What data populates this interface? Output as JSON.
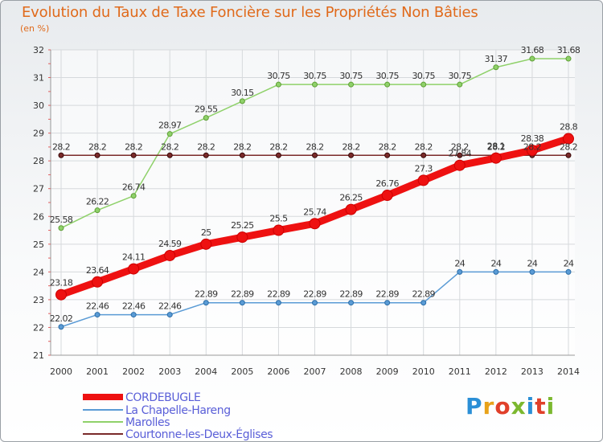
{
  "title": "Evolution du Taux de Taxe Foncière sur les Propriétés Non Bâties",
  "subtitle": "(en %)",
  "logo": {
    "letters": [
      "P",
      "r",
      "o",
      "x",
      "i",
      "t",
      "i"
    ],
    "colors": [
      "#2b8fd6",
      "#e8a21a",
      "#e0402a",
      "#7cb82f",
      "#2b8fd6",
      "#e0402a",
      "#7cb82f"
    ]
  },
  "colors": {
    "title": "#e06a1b",
    "axis_text": "#333333",
    "grid": "#d6d9dc",
    "legend_text": "#5a5fd8"
  },
  "chart_data": {
    "type": "line",
    "title": "Evolution du Taux de Taxe Foncière sur les Propriétés Non Bâties",
    "ylabel": "(en %)",
    "xlabel": "",
    "categories": [
      "2000",
      "2001",
      "2002",
      "2003",
      "2004",
      "2005",
      "2006",
      "2007",
      "2008",
      "2009",
      "2010",
      "2011",
      "2012",
      "2013",
      "2014"
    ],
    "ylim": [
      21,
      32
    ],
    "yticks": [
      21,
      22,
      23,
      24,
      25,
      26,
      27,
      28,
      29,
      30,
      31,
      32
    ],
    "grid": true,
    "legend_position": "bottom-left",
    "series": [
      {
        "name": "CORDEBUGLE",
        "color": "#ee1111",
        "values": [
          23.18,
          23.64,
          24.11,
          24.59,
          25,
          25.25,
          25.5,
          25.74,
          26.25,
          26.76,
          27.3,
          27.84,
          28.1,
          28.38,
          28.8
        ],
        "labels": [
          "23.18",
          "23.64",
          "24.11",
          "24.59",
          "25",
          "25.25",
          "25.5",
          "25.74",
          "26.25",
          "26.76",
          "27.3",
          "27.84",
          "28.1",
          "28.38",
          "28.8"
        ]
      },
      {
        "name": "La Chapelle-Hareng",
        "color": "#5a9bd5",
        "values": [
          22.02,
          22.46,
          22.46,
          22.46,
          22.89,
          22.89,
          22.89,
          22.89,
          22.89,
          22.89,
          22.89,
          24,
          24,
          24,
          24
        ],
        "labels": [
          "22.02",
          "22.46",
          "22.46",
          "22.46",
          "22.89",
          "22.89",
          "22.89",
          "22.89",
          "22.89",
          "22.89",
          "22.89",
          "24",
          "24",
          "24",
          "24"
        ]
      },
      {
        "name": "Marolles",
        "color": "#8fd16a",
        "values": [
          25.58,
          26.22,
          26.74,
          28.97,
          29.55,
          30.15,
          30.75,
          30.75,
          30.75,
          30.75,
          30.75,
          30.75,
          31.37,
          31.68,
          31.68
        ],
        "labels": [
          "25.58",
          "26.22",
          "26.74",
          "28.97",
          "29.55",
          "30.15",
          "30.75",
          "30.75",
          "30.75",
          "30.75",
          "30.75",
          "30.75",
          "31.37",
          "31.68",
          "31.68"
        ]
      },
      {
        "name": "Courtonne-les-Deux-Églises",
        "color": "#7a2a2a",
        "values": [
          28.2,
          28.2,
          28.2,
          28.2,
          28.2,
          28.2,
          28.2,
          28.2,
          28.2,
          28.2,
          28.2,
          28.2,
          28.2,
          28.2,
          28.2
        ],
        "labels": [
          "28.2",
          "28.2",
          "28.2",
          "28.2",
          "28.2",
          "28.2",
          "28.2",
          "28.2",
          "28.2",
          "28.2",
          "28.2",
          "28.2",
          "28.2",
          "28.2",
          "28.2"
        ]
      }
    ]
  }
}
